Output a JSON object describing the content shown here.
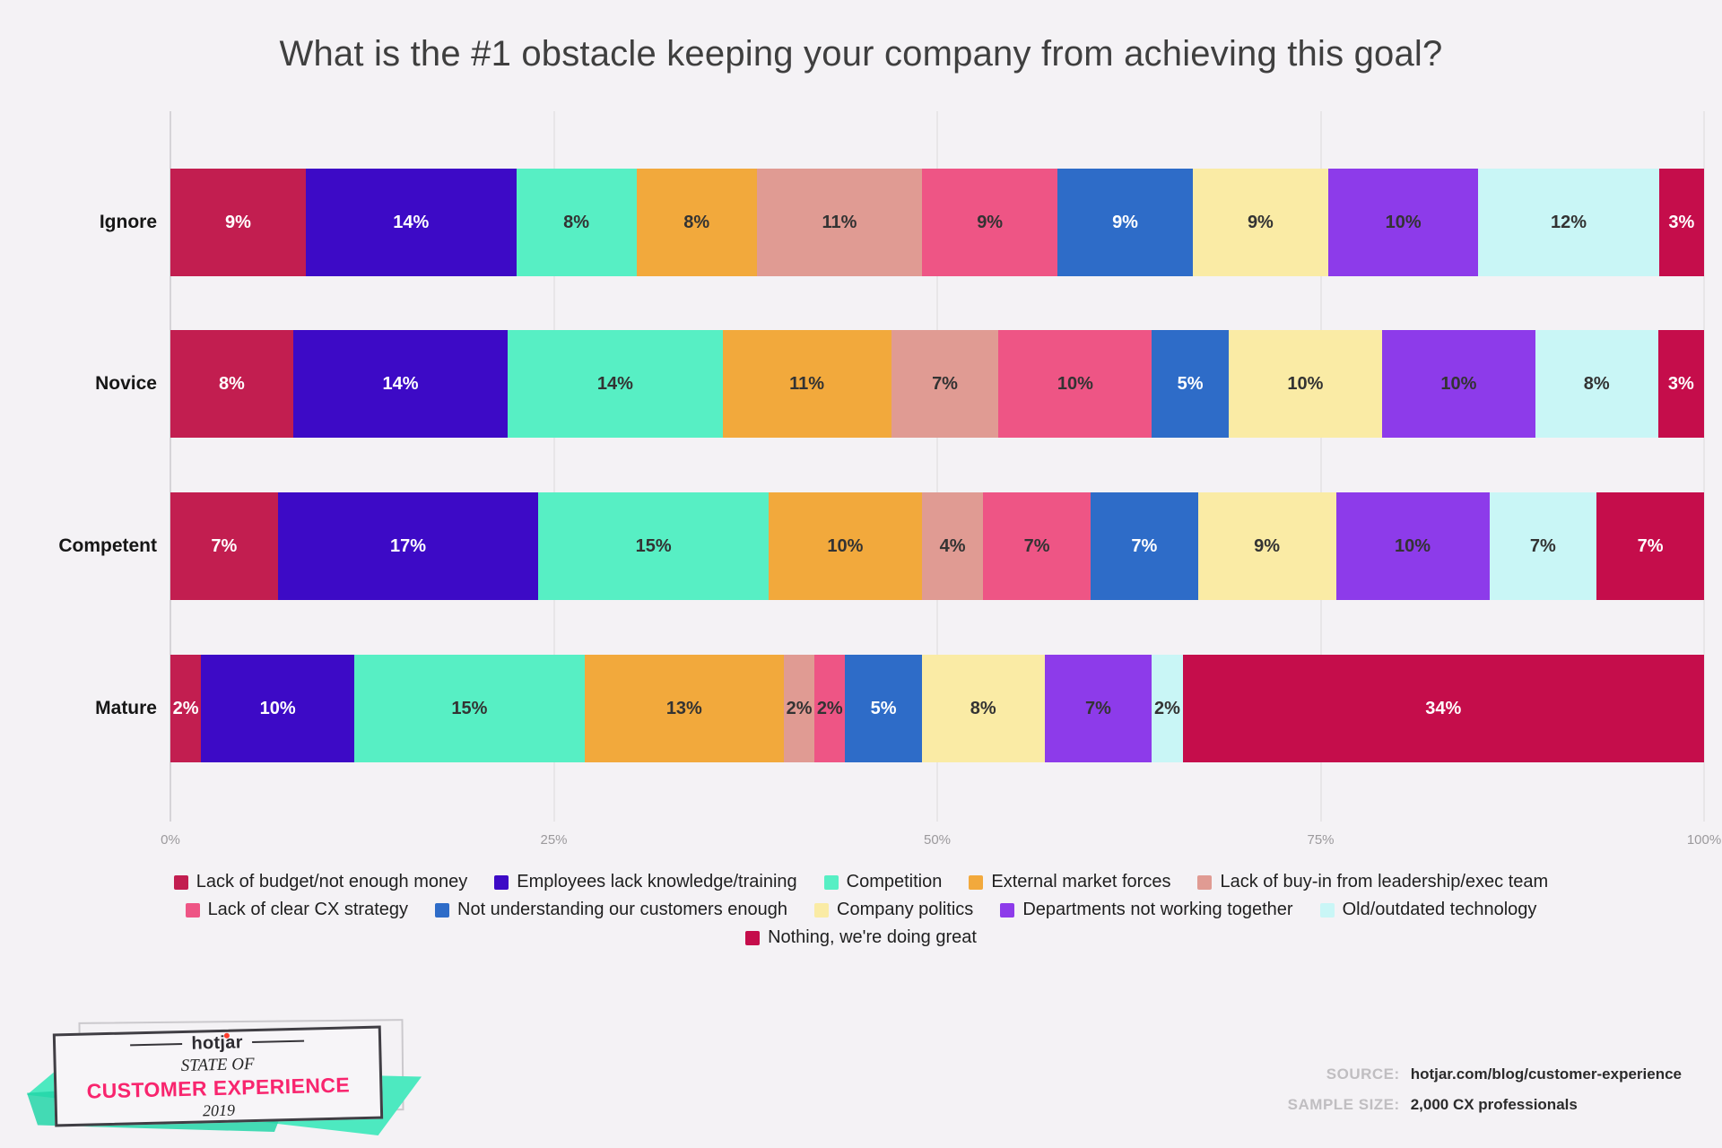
{
  "title": "What is the #1 obstacle keeping your company from achieving this goal?",
  "chart_data": {
    "type": "bar",
    "stacked": true,
    "orientation": "horizontal",
    "title": "What is the #1 obstacle keeping your company from achieving this goal?",
    "categories": [
      "Ignore",
      "Novice",
      "Competent",
      "Mature"
    ],
    "series": [
      {
        "name": "Lack of budget/not enough money",
        "color": "#c21e50",
        "text_color": "#ffffff",
        "values": [
          9,
          8,
          7,
          2
        ]
      },
      {
        "name": "Employees lack knowledge/training",
        "color": "#3d0ac6",
        "text_color": "#ffffff",
        "values": [
          14,
          14,
          17,
          10
        ]
      },
      {
        "name": "Competition",
        "color": "#57efc4",
        "text_color": "#333333",
        "values": [
          8,
          14,
          15,
          15
        ]
      },
      {
        "name": "External market forces",
        "color": "#f2a93c",
        "text_color": "#333333",
        "values": [
          8,
          11,
          10,
          13
        ]
      },
      {
        "name": "Lack of buy-in from leadership/exec team",
        "color": "#e09b93",
        "text_color": "#333333",
        "values": [
          11,
          7,
          4,
          2
        ]
      },
      {
        "name": "Lack of clear CX strategy",
        "color": "#ee5585",
        "text_color": "#333333",
        "values": [
          9,
          10,
          7,
          2
        ]
      },
      {
        "name": "Not understanding our customers enough",
        "color": "#2e6cc8",
        "text_color": "#ffffff",
        "values": [
          9,
          5,
          7,
          5
        ]
      },
      {
        "name": "Company politics",
        "color": "#faeba5",
        "text_color": "#333333",
        "values": [
          9,
          10,
          9,
          8
        ]
      },
      {
        "name": "Departments not working together",
        "color": "#8d3bea",
        "text_color": "#333333",
        "values": [
          10,
          10,
          10,
          7
        ]
      },
      {
        "name": "Old/outdated technology",
        "color": "#c9f6f6",
        "text_color": "#333333",
        "values": [
          12,
          8,
          7,
          2
        ]
      },
      {
        "name": "Nothing, we're doing great",
        "color": "#c50d4b",
        "text_color": "#ffffff",
        "values": [
          3,
          3,
          7,
          34
        ]
      }
    ],
    "x_ticks": [
      "0%",
      "25%",
      "50%",
      "75%",
      "100%"
    ],
    "xlim": [
      0,
      100
    ],
    "xlabel": "",
    "ylabel": "",
    "grid": true,
    "legend_position": "bottom",
    "legend_rows": [
      [
        0,
        1,
        2,
        3,
        4
      ],
      [
        5,
        6,
        7,
        8,
        9
      ],
      [
        10
      ]
    ]
  },
  "footer": {
    "source_label": "SOURCE:",
    "source_value": "hotjar.com/blog/customer-experience",
    "sample_label": "SAMPLE SIZE:",
    "sample_value": "2,000 CX professionals"
  },
  "badge": {
    "logo": "hotjar",
    "line1": "STATE OF",
    "line2": "CUSTOMER EXPERIENCE",
    "line3": "2019"
  }
}
